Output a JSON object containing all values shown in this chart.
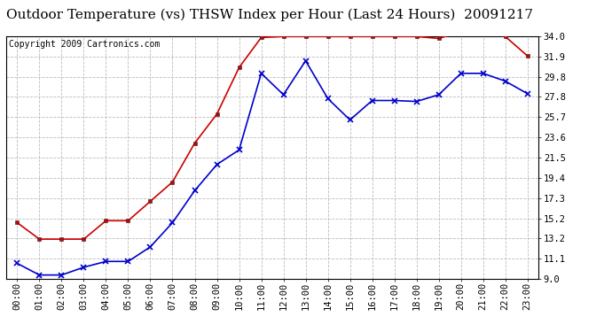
{
  "title": "Outdoor Temperature (vs) THSW Index per Hour (Last 24 Hours)  20091217",
  "copyright": "Copyright 2009 Cartronics.com",
  "hours": [
    "00:00",
    "01:00",
    "02:00",
    "03:00",
    "04:00",
    "05:00",
    "06:00",
    "07:00",
    "08:00",
    "09:00",
    "10:00",
    "11:00",
    "12:00",
    "13:00",
    "14:00",
    "15:00",
    "16:00",
    "17:00",
    "18:00",
    "19:00",
    "20:00",
    "21:00",
    "22:00",
    "23:00"
  ],
  "temp": [
    10.6,
    9.4,
    9.4,
    10.2,
    10.8,
    10.8,
    12.3,
    14.8,
    18.1,
    20.8,
    22.3,
    30.2,
    28.0,
    31.5,
    27.6,
    25.4,
    27.4,
    27.4,
    27.3,
    28.0,
    30.2,
    30.2,
    29.4,
    28.1
  ],
  "thsw": [
    14.8,
    13.1,
    13.1,
    13.1,
    15.0,
    15.0,
    17.0,
    19.0,
    23.0,
    26.0,
    30.8,
    33.9,
    34.0,
    34.0,
    34.0,
    34.0,
    34.0,
    34.0,
    34.0,
    33.8,
    34.5,
    34.6,
    34.0,
    32.0
  ],
  "temp_color": "#0000cc",
  "thsw_color": "#cc0000",
  "bg_color": "#ffffff",
  "grid_color": "#bbbbbb",
  "ymin": 9.0,
  "ymax": 34.0,
  "yticks": [
    9.0,
    11.1,
    13.2,
    15.2,
    17.3,
    19.4,
    21.5,
    23.6,
    25.7,
    27.8,
    29.8,
    31.9,
    34.0
  ],
  "title_fontsize": 11,
  "copyright_fontsize": 7,
  "tick_fontsize": 7.5
}
